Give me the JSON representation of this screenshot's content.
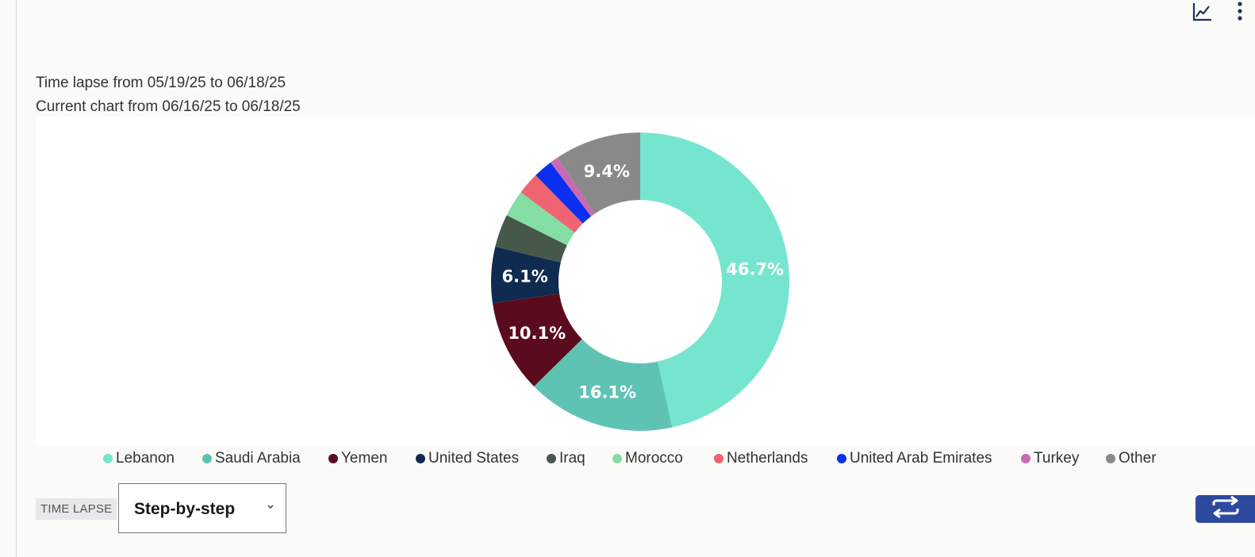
{
  "toolbar": {
    "chart_icon": "line-chart-icon",
    "more_icon": "vertical-ellipsis-icon"
  },
  "subtitles": {
    "line1": "Time lapse from 05/19/25 to 06/18/25",
    "line2": "Current chart from 06/16/25 to 06/18/25"
  },
  "chart_data": {
    "type": "pie",
    "donut": true,
    "start_angle_deg": 0,
    "direction": "clockwise",
    "categories": [
      "Lebanon",
      "Saudi Arabia",
      "Yemen",
      "United States",
      "Iraq",
      "Morocco",
      "Netherlands",
      "United Arab Emirates",
      "Turkey",
      "Other"
    ],
    "values": [
      46.7,
      16.1,
      10.1,
      6.1,
      3.6,
      2.9,
      2.4,
      2.1,
      0.9,
      9.4
    ],
    "data_labels": [
      "46.7%",
      "16.1%",
      "10.1%",
      "6.1%",
      "",
      "",
      "",
      "",
      "",
      "9.4%"
    ],
    "colors": [
      "#76e5cf",
      "#5fc3b4",
      "#5a0c1e",
      "#0f2b4f",
      "#46584a",
      "#84dda3",
      "#ef6470",
      "#0a2ff0",
      "#c869b2",
      "#898989"
    ],
    "legend_position": "bottom",
    "title": ""
  },
  "legend": {
    "items": [
      "Lebanon",
      "Saudi Arabia",
      "Yemen",
      "United States",
      "Iraq",
      "Morocco",
      "Netherlands",
      "United Arab Emirates",
      "Turkey",
      "Other"
    ]
  },
  "controls": {
    "time_lapse_label": "TIME LAPSE",
    "mode_value": "Step-by-step",
    "chevron_icon": "chevron-down-icon",
    "loop_icon": "repeat-arrows-icon"
  }
}
